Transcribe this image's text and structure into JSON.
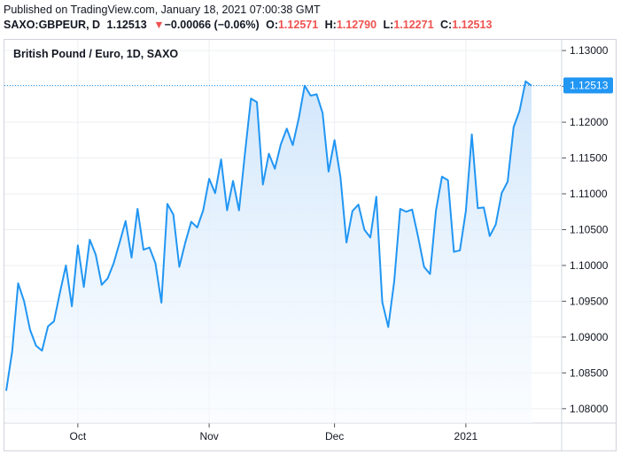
{
  "header": {
    "published": "Published on TradingView.com, January 18, 2021 07:00:38 GMT",
    "symbol": "SAXO:GBPEUR, D",
    "price": "1.12513",
    "change_arrow": "▼",
    "change": "−0.00066 (−0.06%)",
    "open_label": "O:",
    "open": "1.12571",
    "high_label": "H:",
    "high": "1.12790",
    "low_label": "L:",
    "low": "1.12271",
    "close_label": "C:",
    "close": "1.12513"
  },
  "colors": {
    "line": "#2196f3",
    "area_top": "#cfe5fb",
    "area_bottom": "#f7fbff",
    "grid": "#eceff2",
    "negative": "#ef5350",
    "border": "#d1d4dc"
  },
  "chart_data": {
    "type": "area",
    "title": "British Pound / Euro, 1D, SAXO",
    "ylim": [
      1.078,
      1.1315
    ],
    "y_ticks": [
      1.08,
      1.085,
      1.09,
      1.095,
      1.1,
      1.105,
      1.11,
      1.115,
      1.12,
      1.125,
      1.13
    ],
    "y_tick_labels": [
      "1.08000",
      "1.08500",
      "1.09000",
      "1.09500",
      "1.10000",
      "1.10500",
      "1.11000",
      "1.11500",
      "1.12000",
      "1.12500",
      "1.13000"
    ],
    "x_ticks": [
      {
        "label": "Oct",
        "index": 12
      },
      {
        "label": "Nov",
        "index": 34
      },
      {
        "label": "Dec",
        "index": 55
      },
      {
        "label": "2021",
        "index": 77
      }
    ],
    "last_value": 1.12513,
    "last_value_label": "1.12513",
    "grid": true,
    "values": [
      1.0825,
      1.088,
      1.0975,
      1.095,
      1.091,
      1.0888,
      1.0881,
      1.0915,
      1.0922,
      1.0962,
      1.1,
      1.0943,
      1.1028,
      1.097,
      1.1036,
      1.1015,
      1.0973,
      1.0982,
      1.1003,
      1.1032,
      1.1062,
      1.1011,
      1.1079,
      1.1022,
      1.1025,
      1.1003,
      1.0948,
      1.1086,
      1.1071,
      1.0998,
      1.1032,
      1.1061,
      1.1053,
      1.1077,
      1.1121,
      1.1101,
      1.1148,
      1.1077,
      1.1118,
      1.1077,
      1.1157,
      1.1233,
      1.1228,
      1.1113,
      1.1156,
      1.1135,
      1.1169,
      1.1191,
      1.1168,
      1.1205,
      1.1251,
      1.1237,
      1.1239,
      1.1213,
      1.1131,
      1.1175,
      1.1123,
      1.1032,
      1.1076,
      1.1085,
      1.105,
      1.1039,
      1.1096,
      1.0949,
      1.0914,
      1.0978,
      1.1079,
      1.1075,
      1.1078,
      1.104,
      1.0998,
      1.0988,
      1.1077,
      1.1124,
      1.1119,
      1.1019,
      1.1021,
      1.1076,
      1.1183,
      1.108,
      1.1081,
      1.1041,
      1.1057,
      1.1101,
      1.1117,
      1.1193,
      1.1216,
      1.1257,
      1.1251
    ]
  }
}
